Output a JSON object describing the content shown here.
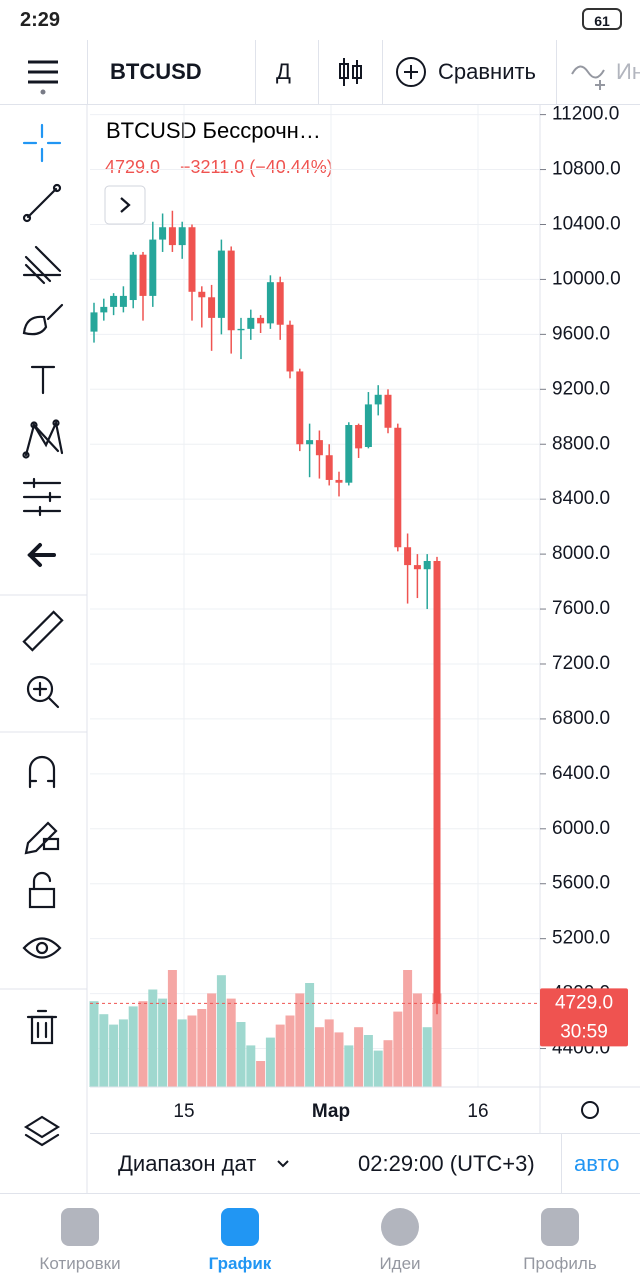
{
  "status_bar": {
    "time": "2:29",
    "battery": "61"
  },
  "toolbar": {
    "symbol": "BTCUSD",
    "interval": "Д",
    "compare": "Сравнить",
    "indicators": "Ин"
  },
  "chart_data": {
    "type": "candlestick",
    "title": "BTCUSD Бессрочн…",
    "legend": {
      "last": "4729.0",
      "change": "−3211.0 (−40.44%)"
    },
    "open": [
      9620,
      9760,
      9800,
      9800,
      9850,
      10180,
      9880,
      10290,
      10380,
      10250,
      10380,
      9910,
      9870,
      9720,
      10210,
      9630,
      9640,
      9720,
      9680,
      9980,
      9670,
      9330,
      8800,
      8830,
      8720,
      8540,
      8520,
      8940,
      8780,
      9090,
      9160,
      8920,
      8050,
      7920,
      7890,
      7950
    ],
    "high": [
      9830,
      9860,
      9900,
      9950,
      10200,
      10200,
      10420,
      10480,
      10500,
      10420,
      10400,
      9950,
      9960,
      10290,
      10240,
      9720,
      9780,
      9740,
      10030,
      10020,
      9700,
      9350,
      8950,
      8900,
      8800,
      8600,
      8960,
      8950,
      9180,
      9230,
      9200,
      8950,
      8150,
      8000,
      8000,
      7980
    ],
    "low": [
      9540,
      9700,
      9740,
      9760,
      9790,
      9700,
      9800,
      10200,
      10200,
      10150,
      9700,
      9650,
      9480,
      9600,
      9460,
      9420,
      9560,
      9610,
      9640,
      9560,
      9280,
      8750,
      8560,
      8550,
      8500,
      8420,
      8500,
      8700,
      8770,
      9010,
      8880,
      8020,
      7640,
      7680,
      7600,
      4650
    ],
    "close": [
      9760,
      9800,
      9880,
      9880,
      10180,
      9880,
      10290,
      10380,
      10250,
      10380,
      9910,
      9870,
      9720,
      10210,
      9630,
      9640,
      9720,
      9680,
      9980,
      9670,
      9330,
      8800,
      8830,
      8720,
      8540,
      8520,
      8940,
      8770,
      9090,
      9160,
      8920,
      8050,
      7920,
      7890,
      7950,
      4729
    ],
    "volume": [
      66,
      56,
      48,
      52,
      62,
      66,
      75,
      68,
      90,
      52,
      55,
      60,
      72,
      86,
      68,
      50,
      32,
      20,
      38,
      48,
      55,
      72,
      80,
      46,
      52,
      42,
      32,
      46,
      40,
      28,
      36,
      58,
      90,
      72,
      46,
      72
    ],
    "vlim": [
      0,
      100
    ],
    "ylim": [
      4120,
      11270
    ],
    "yticks": [
      {
        "value": 11200,
        "label": "11200.0"
      },
      {
        "value": 10800,
        "label": "10800.0"
      },
      {
        "value": 10400,
        "label": "10400.0"
      },
      {
        "value": 10000,
        "label": "10000.0"
      },
      {
        "value": 9600,
        "label": "9600.0"
      },
      {
        "value": 9200,
        "label": "9200.0"
      },
      {
        "value": 8800,
        "label": "8800.0"
      },
      {
        "value": 8400,
        "label": "8400.0"
      },
      {
        "value": 8000,
        "label": "8000.0"
      },
      {
        "value": 7600,
        "label": "7600.0"
      },
      {
        "value": 7200,
        "label": "7200.0"
      },
      {
        "value": 6800,
        "label": "6800.0"
      },
      {
        "value": 6400,
        "label": "6400.0"
      },
      {
        "value": 6000,
        "label": "6000.0"
      },
      {
        "value": 5600,
        "label": "5600.0"
      },
      {
        "value": 5200,
        "label": "5200.0"
      },
      {
        "value": 4800,
        "label": "4800.0"
      },
      {
        "value": 4400,
        "label": "4400.0"
      }
    ],
    "xtick_labels": [
      "15",
      "Мар",
      "16"
    ],
    "last_label": "4729.0",
    "countdown": "30:59",
    "colors": {
      "up": "#26a69a",
      "down": "#ef5350",
      "up_volume": "#9fd8cf",
      "down_volume": "#f5a7a5"
    },
    "grid": true
  },
  "bottom_bar": {
    "range": "Диапазон дат",
    "time": "02:29:00 (UTC+3)",
    "scale": "авто"
  },
  "nav": [
    "Котировки",
    "График",
    "Идеи",
    "Профиль"
  ]
}
